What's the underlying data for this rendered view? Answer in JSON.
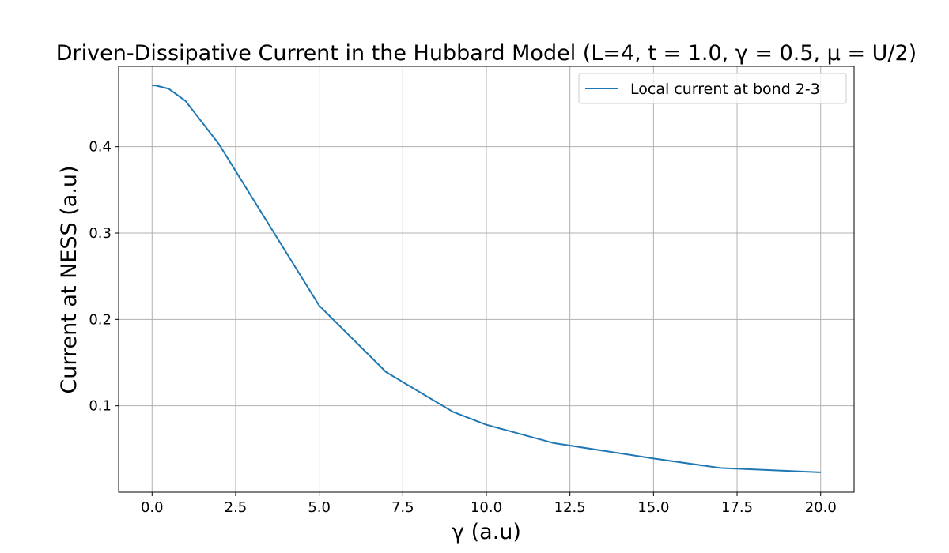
{
  "chart_data": {
    "type": "line",
    "title": "Driven-Dissipative Current in the Hubbard Model (L=4, t = 1.0, γ = 0.5, μ = U/2)",
    "xlabel": "γ (a.u)",
    "ylabel": "Current at NESS (a.u)",
    "xlim": [
      -1.0,
      21.0
    ],
    "ylim": [
      0.0,
      0.493
    ],
    "xticks": [
      0.0,
      2.5,
      5.0,
      7.5,
      10.0,
      12.5,
      15.0,
      17.5,
      20.0
    ],
    "xtick_labels": [
      "0.0",
      "2.5",
      "5.0",
      "7.5",
      "10.0",
      "12.5",
      "15.0",
      "17.5",
      "20.0"
    ],
    "yticks": [
      0.1,
      0.2,
      0.3,
      0.4
    ],
    "ytick_labels": [
      "0.1",
      "0.2",
      "0.3",
      "0.4"
    ],
    "grid": true,
    "legend_position": "top-right",
    "series": [
      {
        "name": "Local current at bond 2-3",
        "color": "#1f77b4",
        "x": [
          0.0,
          0.1,
          0.5,
          1.0,
          2.0,
          5.0,
          7.0,
          9.0,
          10.0,
          12.0,
          15.0,
          17.0,
          20.0
        ],
        "y": [
          0.471,
          0.471,
          0.467,
          0.453,
          0.403,
          0.216,
          0.139,
          0.093,
          0.078,
          0.057,
          0.039,
          0.028,
          0.023
        ]
      }
    ]
  }
}
